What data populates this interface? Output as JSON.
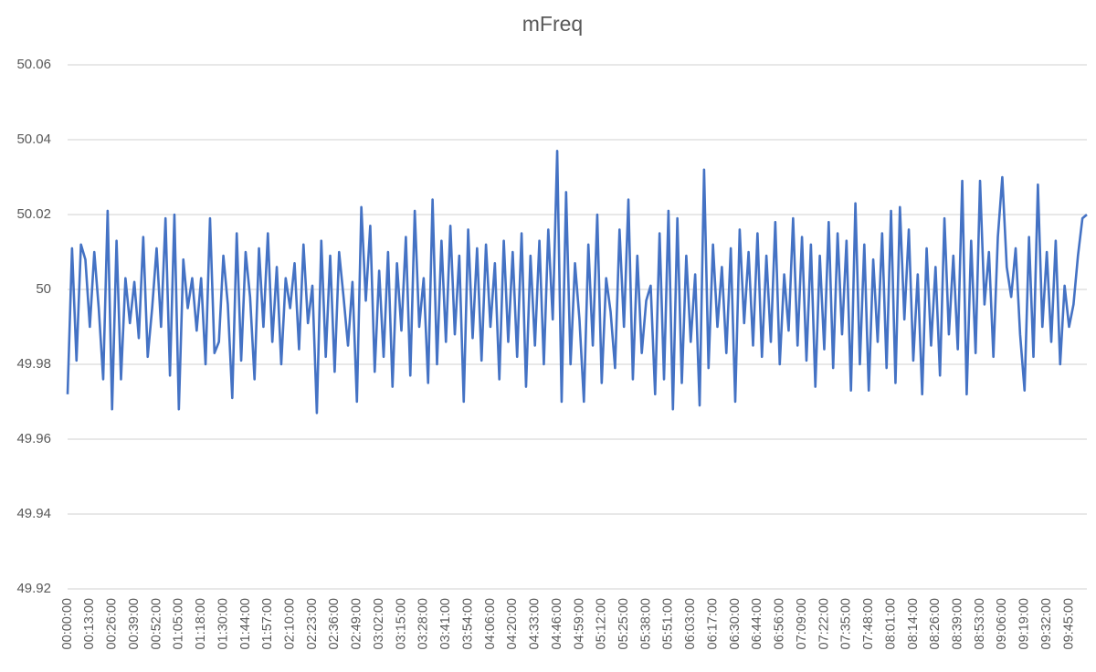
{
  "chart_data": {
    "type": "line",
    "title": "mFreq",
    "color": "#4472c4",
    "grid": true,
    "ylim": [
      49.92,
      50.06
    ],
    "yticks": [
      49.92,
      49.94,
      49.96,
      49.98,
      50,
      50.02,
      50.04,
      50.06
    ],
    "categories": [
      "00:00:00",
      null,
      null,
      null,
      null,
      "00:13:00",
      null,
      null,
      null,
      null,
      "00:26:00",
      null,
      null,
      null,
      null,
      "00:39:00",
      null,
      null,
      null,
      null,
      "00:52:00",
      null,
      null,
      null,
      null,
      "01:05:00",
      null,
      null,
      null,
      null,
      "01:18:00",
      null,
      null,
      null,
      null,
      "01:30:00",
      null,
      null,
      null,
      null,
      "01:44:00",
      null,
      null,
      null,
      null,
      "01:57:00",
      null,
      null,
      null,
      null,
      "02:10:00",
      null,
      null,
      null,
      null,
      "02:23:00",
      null,
      null,
      null,
      null,
      "02:36:00",
      null,
      null,
      null,
      null,
      "02:49:00",
      null,
      null,
      null,
      null,
      "03:02:00",
      null,
      null,
      null,
      null,
      "03:15:00",
      null,
      null,
      null,
      null,
      "03:28:00",
      null,
      null,
      null,
      null,
      "03:41:00",
      null,
      null,
      null,
      null,
      "03:54:00",
      null,
      null,
      null,
      null,
      "04:06:00",
      null,
      null,
      null,
      null,
      "04:20:00",
      null,
      null,
      null,
      null,
      "04:33:00",
      null,
      null,
      null,
      null,
      "04:46:00",
      null,
      null,
      null,
      null,
      "04:59:00",
      null,
      null,
      null,
      null,
      "05:12:00",
      null,
      null,
      null,
      null,
      "05:25:00",
      null,
      null,
      null,
      null,
      "05:38:00",
      null,
      null,
      null,
      null,
      "05:51:00",
      null,
      null,
      null,
      null,
      "06:03:00",
      null,
      null,
      null,
      null,
      "06:17:00",
      null,
      null,
      null,
      null,
      "06:30:00",
      null,
      null,
      null,
      null,
      "06:44:00",
      null,
      null,
      null,
      null,
      "06:56:00",
      null,
      null,
      null,
      null,
      "07:09:00",
      null,
      null,
      null,
      null,
      "07:22:00",
      null,
      null,
      null,
      null,
      "07:35:00",
      null,
      null,
      null,
      null,
      "07:48:00",
      null,
      null,
      null,
      null,
      "08:01:00",
      null,
      null,
      null,
      null,
      "08:14:00",
      null,
      null,
      null,
      null,
      "08:26:00",
      null,
      null,
      null,
      null,
      "08:39:00",
      null,
      null,
      null,
      null,
      "08:53:00",
      null,
      null,
      null,
      null,
      "09:06:00",
      null,
      null,
      null,
      null,
      "09:19:00",
      null,
      null,
      null,
      null,
      "09:32:00",
      null,
      null,
      null,
      null,
      "09:45:00",
      null,
      null,
      null,
      null
    ],
    "values": [
      49.972,
      50.011,
      49.981,
      50.012,
      50.008,
      49.99,
      50.01,
      49.995,
      49.976,
      50.021,
      49.968,
      50.013,
      49.976,
      50.003,
      49.991,
      50.002,
      49.987,
      50.014,
      49.982,
      49.995,
      50.011,
      49.99,
      50.019,
      49.977,
      50.02,
      49.968,
      50.008,
      49.995,
      50.003,
      49.989,
      50.003,
      49.98,
      50.019,
      49.983,
      49.986,
      50.009,
      49.996,
      49.971,
      50.015,
      49.981,
      50.01,
      49.998,
      49.976,
      50.011,
      49.99,
      50.015,
      49.986,
      50.006,
      49.98,
      50.003,
      49.995,
      50.007,
      49.984,
      50.012,
      49.991,
      50.001,
      49.967,
      50.013,
      49.982,
      50.009,
      49.978,
      50.01,
      49.998,
      49.985,
      50.002,
      49.97,
      50.022,
      49.997,
      50.017,
      49.978,
      50.005,
      49.982,
      50.01,
      49.974,
      50.007,
      49.989,
      50.014,
      49.977,
      50.021,
      49.99,
      50.003,
      49.975,
      50.024,
      49.98,
      50.013,
      49.986,
      50.017,
      49.988,
      50.009,
      49.97,
      50.016,
      49.987,
      50.011,
      49.981,
      50.012,
      49.99,
      50.007,
      49.976,
      50.013,
      49.986,
      50.01,
      49.982,
      50.015,
      49.974,
      50.009,
      49.985,
      50.013,
      49.98,
      50.016,
      49.992,
      50.037,
      49.97,
      50.026,
      49.98,
      50.007,
      49.992,
      49.97,
      50.012,
      49.985,
      50.02,
      49.975,
      50.003,
      49.994,
      49.979,
      50.016,
      49.99,
      50.024,
      49.976,
      50.009,
      49.983,
      49.997,
      50.001,
      49.972,
      50.015,
      49.976,
      50.021,
      49.968,
      50.019,
      49.975,
      50.009,
      49.986,
      50.004,
      49.969,
      50.032,
      49.979,
      50.012,
      49.99,
      50.006,
      49.983,
      50.011,
      49.97,
      50.016,
      49.991,
      50.01,
      49.985,
      50.015,
      49.982,
      50.009,
      49.986,
      50.018,
      49.98,
      50.004,
      49.989,
      50.019,
      49.985,
      50.014,
      49.981,
      50.012,
      49.974,
      50.009,
      49.984,
      50.018,
      49.979,
      50.015,
      49.988,
      50.013,
      49.973,
      50.023,
      49.98,
      50.012,
      49.973,
      50.008,
      49.986,
      50.015,
      49.979,
      50.021,
      49.975,
      50.022,
      49.992,
      50.016,
      49.981,
      50.004,
      49.972,
      50.011,
      49.985,
      50.006,
      49.977,
      50.019,
      49.988,
      50.009,
      49.984,
      50.029,
      49.972,
      50.013,
      49.983,
      50.029,
      49.996,
      50.01,
      49.982,
      50.014,
      50.03,
      50.006,
      49.998,
      50.011,
      49.988,
      49.973,
      50.014,
      49.982,
      50.028,
      49.99,
      50.01,
      49.986,
      50.013,
      49.98,
      50.001,
      49.99,
      49.996,
      50.009,
      50.019,
      50.02
    ]
  }
}
